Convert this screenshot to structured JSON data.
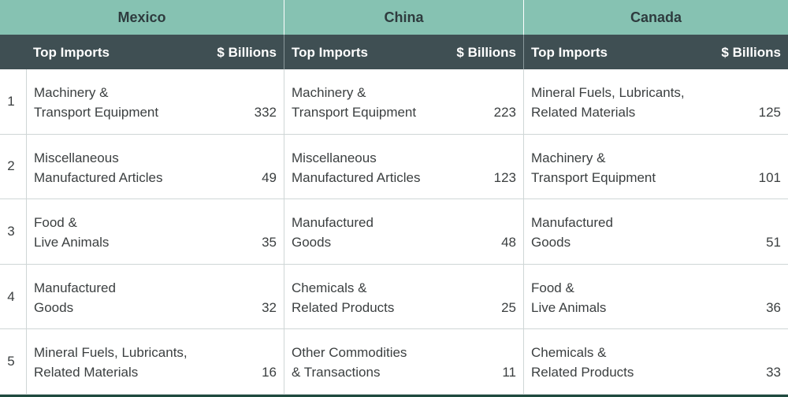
{
  "countries": [
    "Mexico",
    "China",
    "Canada"
  ],
  "header": {
    "label": "Top Imports",
    "unit": "$ Billions"
  },
  "rows": [
    {
      "rank": "1",
      "cells": [
        {
          "name": "Machinery &\nTransport Equipment",
          "value": "332"
        },
        {
          "name": "Machinery &\nTransport Equipment",
          "value": "223"
        },
        {
          "name": "Mineral Fuels, Lubricants,\nRelated Materials",
          "value": "125"
        }
      ]
    },
    {
      "rank": "2",
      "cells": [
        {
          "name": "Miscellaneous\nManufactured Articles",
          "value": "49"
        },
        {
          "name": "Miscellaneous\nManufactured Articles",
          "value": "123"
        },
        {
          "name": "Machinery &\nTransport Equipment",
          "value": "101"
        }
      ]
    },
    {
      "rank": "3",
      "cells": [
        {
          "name": "Food &\nLive Animals",
          "value": "35"
        },
        {
          "name": "Manufactured\nGoods",
          "value": "48"
        },
        {
          "name": "Manufactured\nGoods",
          "value": "51"
        }
      ]
    },
    {
      "rank": "4",
      "cells": [
        {
          "name": "Manufactured\nGoods",
          "value": "32"
        },
        {
          "name": "Chemicals &\nRelated Products",
          "value": "25"
        },
        {
          "name": "Food &\nLive Animals",
          "value": "36"
        }
      ]
    },
    {
      "rank": "5",
      "cells": [
        {
          "name": "Mineral Fuels, Lubricants,\nRelated Materials",
          "value": "16"
        },
        {
          "name": "Other Commodities\n& Transactions",
          "value": "11"
        },
        {
          "name": "Chemicals &\nRelated Products",
          "value": "33"
        }
      ]
    }
  ]
}
